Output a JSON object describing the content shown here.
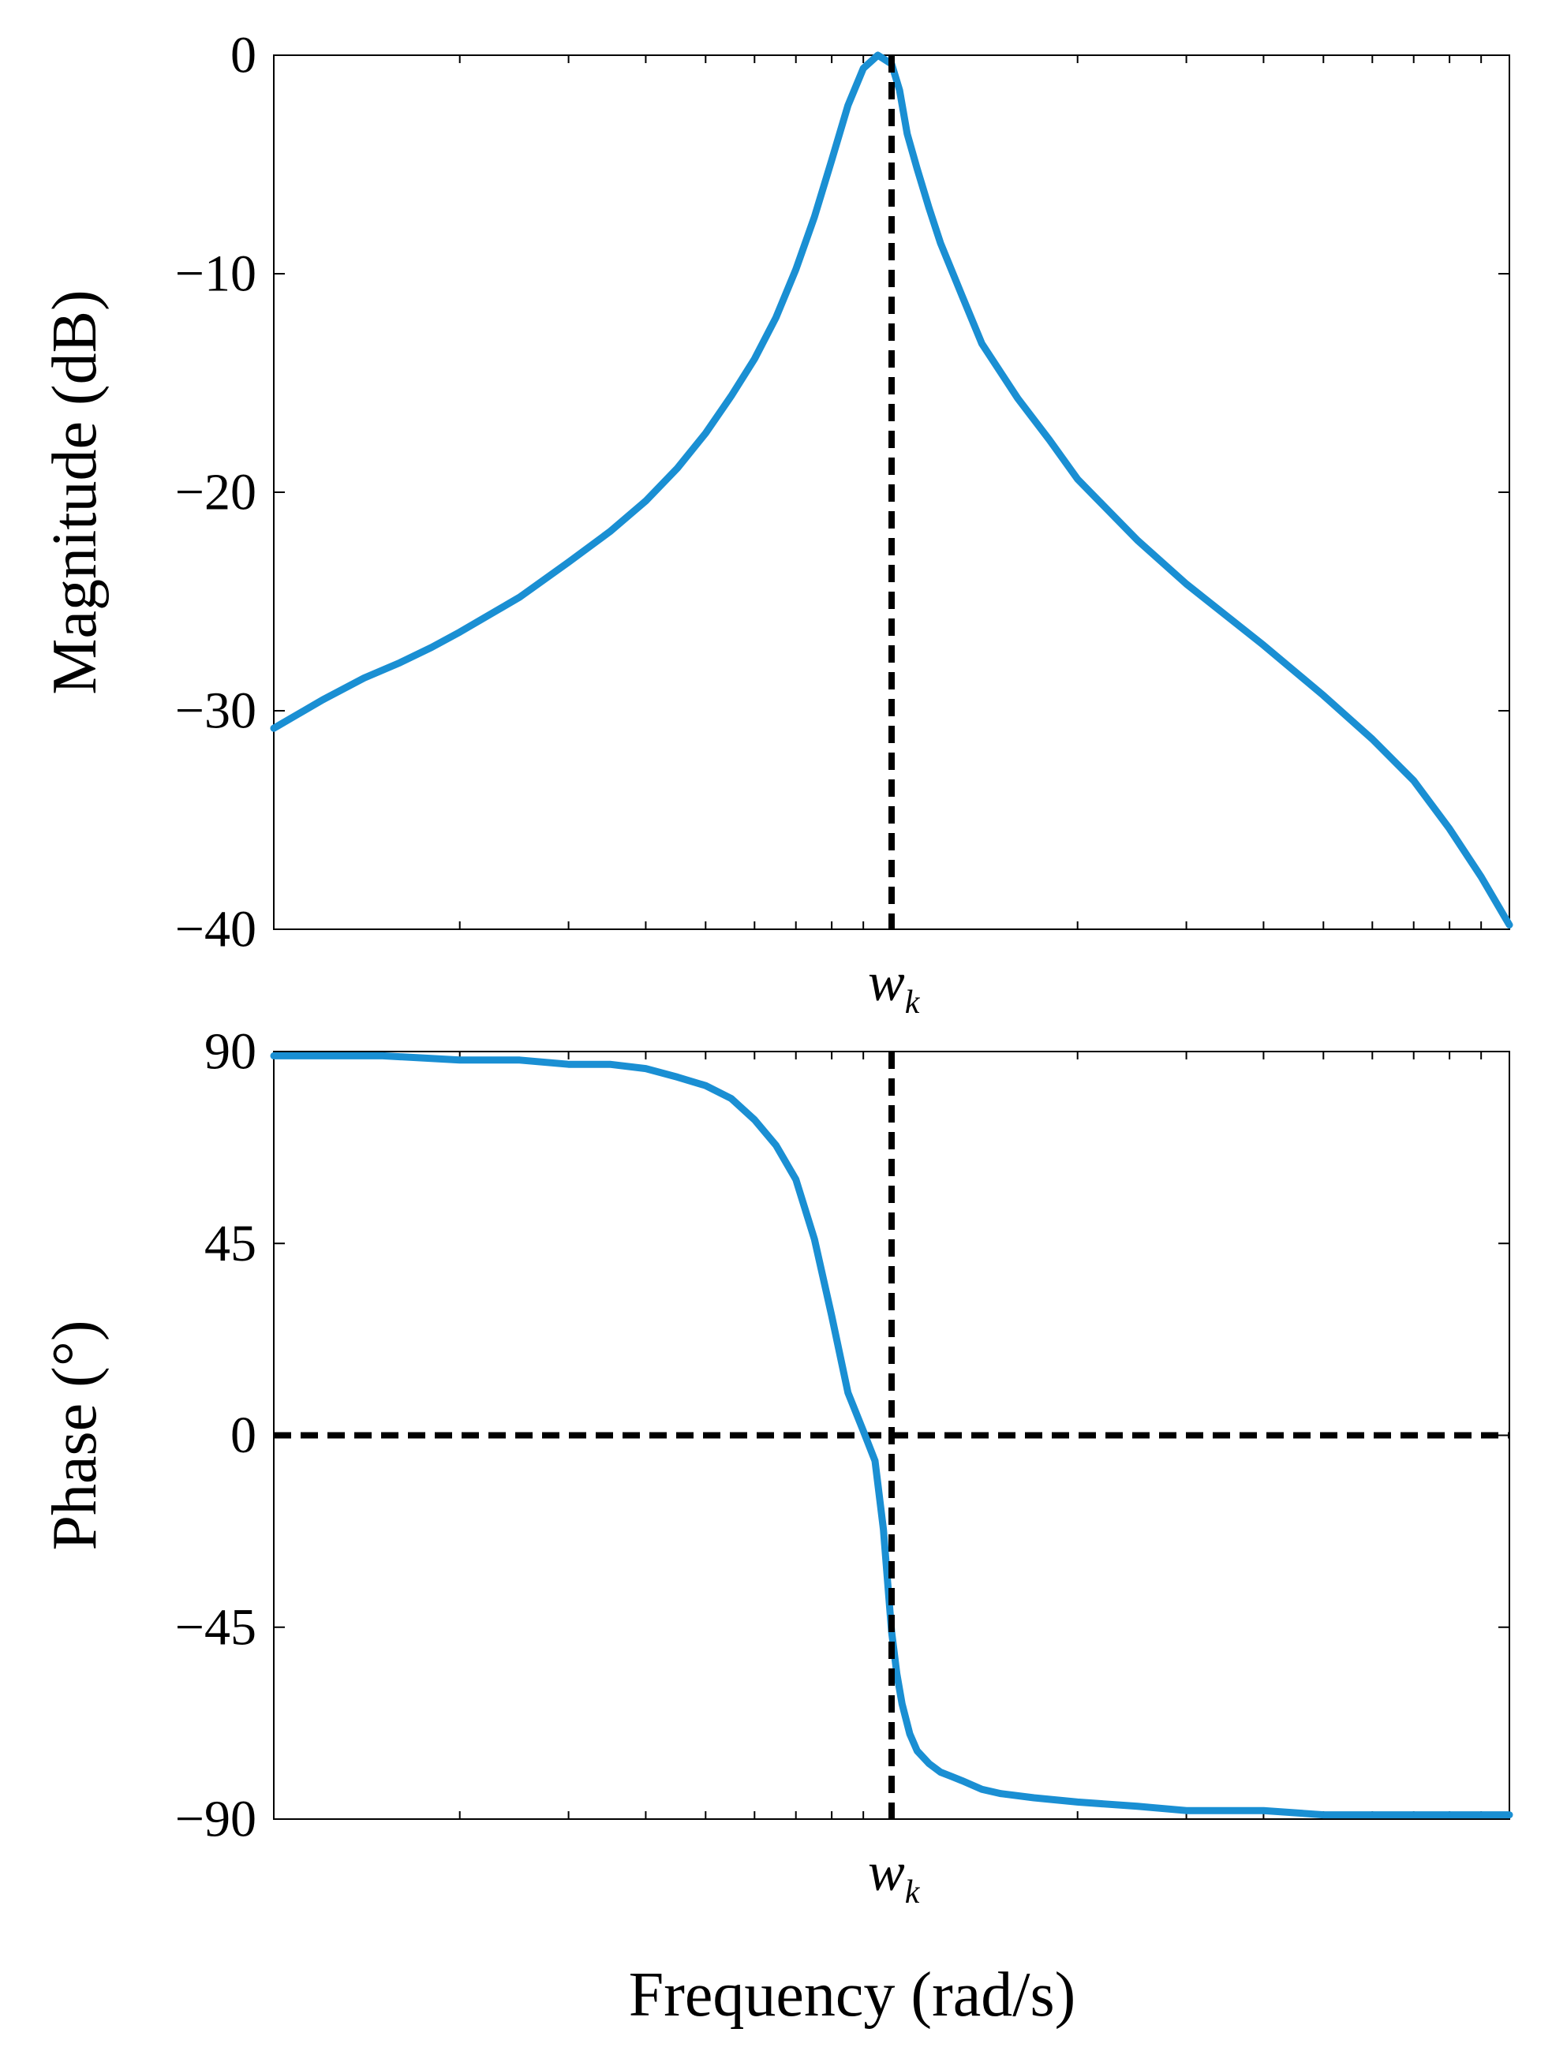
{
  "chart_data": [
    {
      "type": "line",
      "panel": "magnitude",
      "title": "",
      "xlabel": "",
      "ylabel": "Magnitude (dB)",
      "x_scale": "log",
      "xlim": [
        0.1,
        10
      ],
      "ylim": [
        -40,
        0
      ],
      "y_ticks": [
        0,
        -10,
        -20,
        -30,
        -40
      ],
      "y_tick_labels": [
        "0",
        "−10",
        "−20",
        "−30",
        "−40"
      ],
      "x_marker": {
        "x": 1,
        "label_main": "w",
        "label_sub": "k",
        "style": "dashed"
      },
      "grid": false,
      "series": [
        {
          "color": "#1a8fd3",
          "x": [
            0.1,
            0.12,
            0.14,
            0.16,
            0.18,
            0.2,
            0.25,
            0.3,
            0.35,
            0.4,
            0.45,
            0.5,
            0.55,
            0.6,
            0.65,
            0.7,
            0.75,
            0.8,
            0.85,
            0.9,
            0.95,
            1.0,
            1.03,
            1.06,
            1.1,
            1.15,
            1.2,
            1.3,
            1.4,
            1.6,
            1.8,
            2.0,
            2.5,
            3.0,
            4.0,
            5.0,
            6.0,
            7.0,
            8.0,
            9.0,
            10.0
          ],
          "values": [
            -30.8,
            -29.5,
            -28.5,
            -27.8,
            -27.1,
            -26.4,
            -24.8,
            -23.2,
            -21.8,
            -20.4,
            -18.9,
            -17.3,
            -15.6,
            -13.9,
            -12.0,
            -9.8,
            -7.4,
            -4.8,
            -2.3,
            -0.6,
            0.0,
            -0.4,
            -1.6,
            -3.6,
            -5.2,
            -7.0,
            -8.6,
            -11.0,
            -13.2,
            -15.7,
            -17.6,
            -19.4,
            -22.2,
            -24.2,
            -27.0,
            -29.3,
            -31.3,
            -33.2,
            -35.4,
            -37.6,
            -39.8
          ]
        }
      ]
    },
    {
      "type": "line",
      "panel": "phase",
      "title": "",
      "xlabel": "Frequency  (rad/s)",
      "ylabel": "Phase (°)",
      "x_scale": "log",
      "xlim": [
        0.1,
        10
      ],
      "ylim": [
        -90,
        90
      ],
      "y_ticks": [
        90,
        45,
        0,
        -45,
        -90
      ],
      "y_tick_labels": [
        "90",
        "45",
        "0",
        "−45",
        "−90"
      ],
      "x_marker": {
        "x": 1,
        "label_main": "w",
        "label_sub": "k",
        "style": "dashed"
      },
      "y_marker": {
        "y": 0,
        "style": "dashed"
      },
      "grid": false,
      "series": [
        {
          "color": "#1a8fd3",
          "x": [
            0.1,
            0.15,
            0.2,
            0.25,
            0.3,
            0.35,
            0.4,
            0.45,
            0.5,
            0.55,
            0.6,
            0.65,
            0.7,
            0.75,
            0.8,
            0.85,
            0.9,
            0.94,
            0.97,
            1.0,
            1.02,
            1.04,
            1.07,
            1.1,
            1.15,
            1.2,
            1.25,
            1.3,
            1.4,
            1.5,
            1.7,
            2.0,
            2.5,
            3.0,
            4.0,
            5.0,
            7.0,
            10.0
          ],
          "values": [
            89,
            89,
            88,
            88,
            87,
            87,
            86,
            84,
            82,
            79,
            74,
            68,
            60,
            46,
            28,
            10,
            1,
            -6,
            -22,
            -46,
            -56,
            -63,
            -70,
            -74,
            -77,
            -79,
            -80,
            -81,
            -83,
            -84,
            -85,
            -86,
            -87,
            -88,
            -88,
            -89,
            -89,
            -89
          ]
        }
      ]
    }
  ]
}
